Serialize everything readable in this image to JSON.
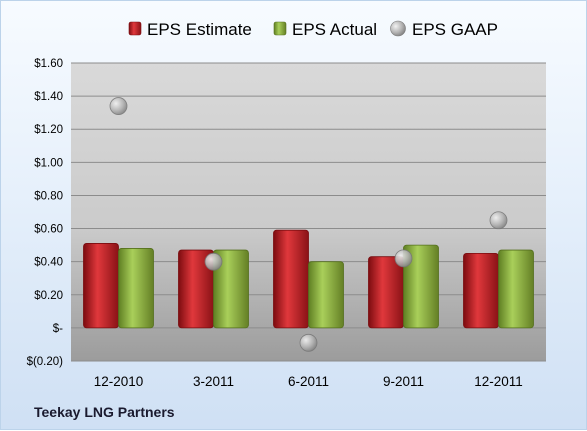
{
  "chart_data": {
    "type": "bar",
    "categories": [
      "12-2010",
      "3-2011",
      "6-2011",
      "9-2011",
      "12-2011"
    ],
    "series": [
      {
        "name": "EPS Estimate",
        "kind": "bar",
        "color": "#c0191f",
        "values": [
          0.51,
          0.47,
          0.59,
          0.43,
          0.45
        ]
      },
      {
        "name": "EPS Actual",
        "kind": "bar",
        "color": "#8ab13a",
        "values": [
          0.48,
          0.47,
          0.4,
          0.5,
          0.47
        ]
      },
      {
        "name": "EPS GAAP",
        "kind": "marker",
        "color": "#a8a8a8",
        "values": [
          1.34,
          0.4,
          -0.09,
          0.42,
          0.65
        ]
      }
    ],
    "yticks": [
      {
        "value": 1.6,
        "label": "$1.60"
      },
      {
        "value": 1.4,
        "label": "$1.40"
      },
      {
        "value": 1.2,
        "label": "$1.20"
      },
      {
        "value": 1.0,
        "label": "$1.00"
      },
      {
        "value": 0.8,
        "label": "$0.80"
      },
      {
        "value": 0.6,
        "label": "$0.60"
      },
      {
        "value": 0.4,
        "label": "$0.40"
      },
      {
        "value": 0.2,
        "label": "$0.20"
      },
      {
        "value": 0.0,
        "label": "$-"
      },
      {
        "value": -0.2,
        "label": "$(0.20)"
      }
    ],
    "ylim": [
      -0.2,
      1.6
    ],
    "grid": true,
    "legend": "top",
    "company": "Teekay LNG Partners"
  }
}
